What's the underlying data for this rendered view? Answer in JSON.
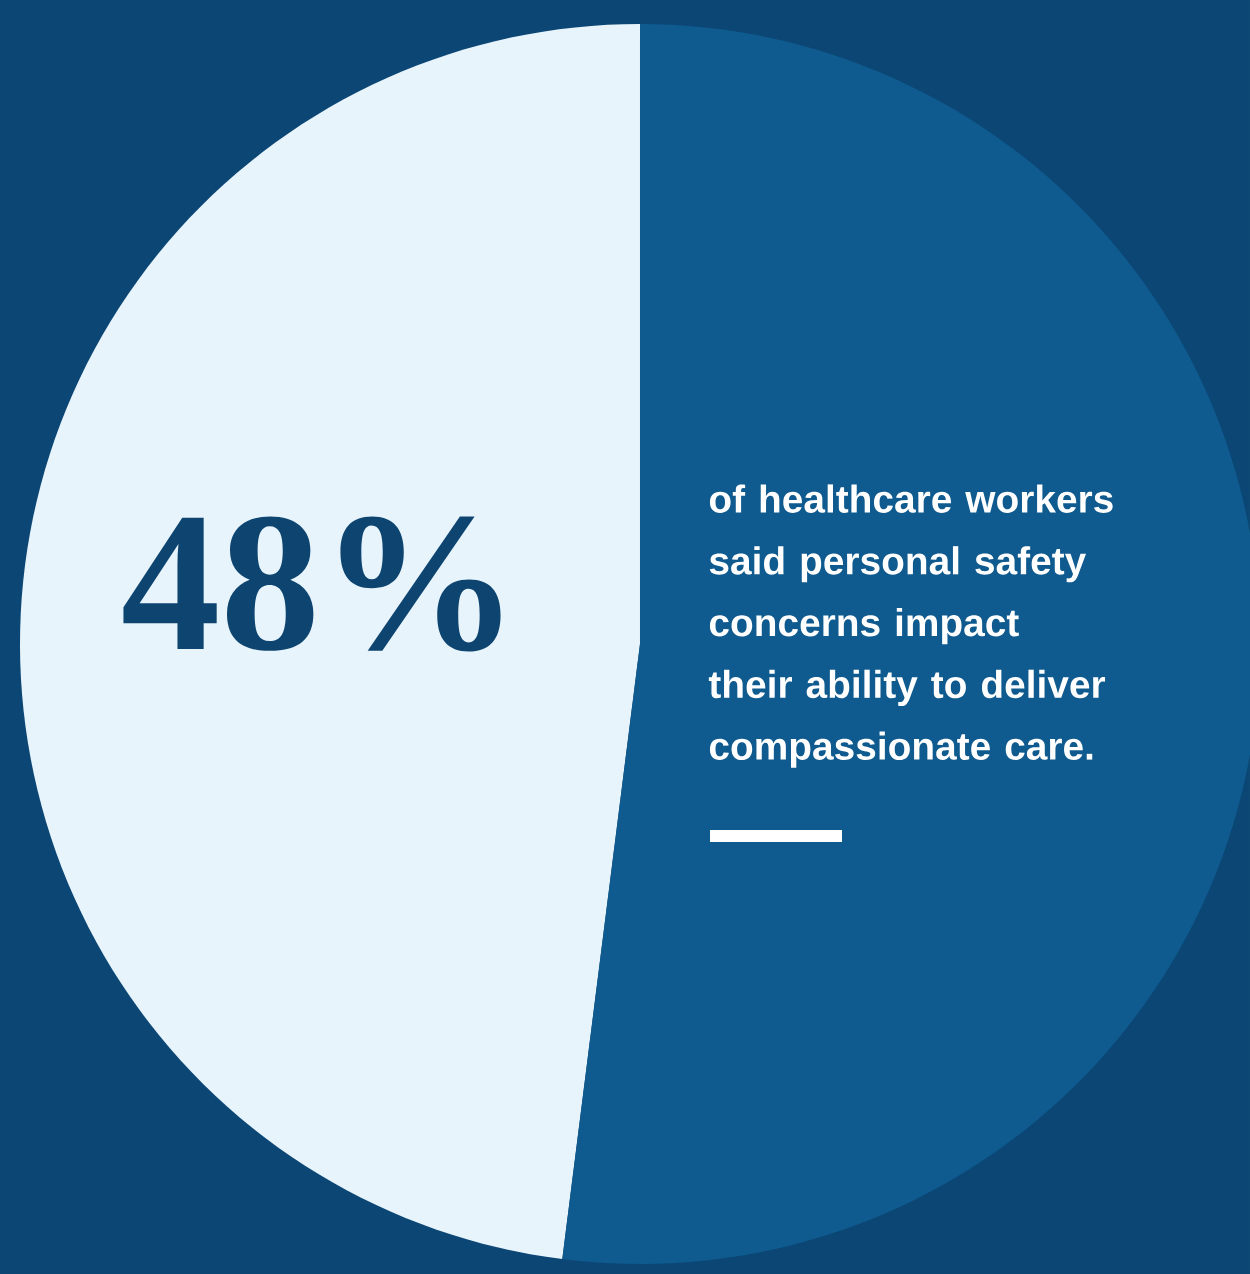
{
  "chart_data": {
    "type": "pie",
    "categories": [
      null,
      null
    ],
    "values": [
      48,
      52
    ],
    "colors": [
      "#e8f4fc",
      "#0f5a8e"
    ],
    "value_labels": [
      "48%",
      null
    ],
    "annotations": [
      "of healthcare workers said personal safety concerns impact their ability to deliver compassionate care."
    ]
  }
}
